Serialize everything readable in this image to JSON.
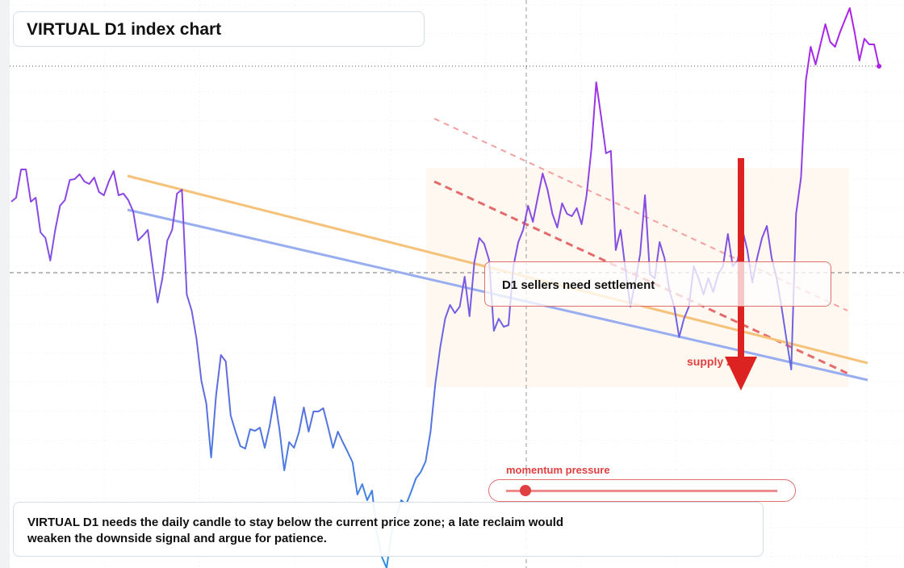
{
  "chart_data": {
    "type": "line",
    "title": "VIRTUAL D1 index chart",
    "values": [
      454,
      459,
      494,
      494,
      454,
      459,
      416,
      409,
      381,
      419,
      449,
      456,
      481,
      482,
      488,
      479,
      476,
      484,
      466,
      462,
      479,
      492,
      462,
      464,
      456,
      442,
      406,
      412,
      419,
      374,
      329,
      359,
      406,
      419,
      464,
      469,
      339,
      319,
      284,
      232,
      204,
      137,
      214,
      264,
      256,
      189,
      169,
      151,
      148,
      172,
      170,
      174,
      149,
      176,
      212,
      172,
      121,
      156,
      149,
      168,
      199,
      169,
      194,
      194,
      198,
      174,
      149,
      169,
      156,
      144,
      131,
      91,
      104,
      84,
      96,
      44,
      14,
      0,
      44,
      64,
      84,
      79,
      94,
      111,
      119,
      132,
      169,
      229,
      274,
      309,
      326,
      316,
      324,
      361,
      312,
      379,
      409,
      402,
      382,
      294,
      309,
      299,
      301,
      374,
      404,
      419,
      449,
      429,
      459,
      489,
      469,
      439,
      422,
      452,
      439,
      436,
      446,
      426,
      461,
      519,
      602,
      559,
      514,
      517,
      394,
      419,
      369,
      324,
      354,
      389,
      462,
      364,
      359,
      404,
      384,
      344,
      324,
      286,
      309,
      324,
      374,
      359,
      339,
      359,
      342,
      364,
      374,
      414,
      374,
      381,
      419,
      394,
      354,
      384,
      409,
      424,
      384,
      359,
      324,
      284,
      246,
      439,
      484,
      604,
      646,
      624,
      649,
      674,
      652,
      646,
      664,
      679,
      694,
      664,
      629,
      656,
      649,
      649,
      622
    ],
    "colors": [
      "#b01ee8",
      "#7a5ae0",
      "#2f8fe0"
    ],
    "ylim": [
      0,
      704
    ],
    "annotations": {
      "zone": "D1 sellers need settlement",
      "supply": "supply zone",
      "momentum": "momentum pressure",
      "note": "VIRTUAL D1 needs the daily candle to stay below the current price zone; a late reclaim would weaken the downside signal and argue for patience."
    }
  }
}
